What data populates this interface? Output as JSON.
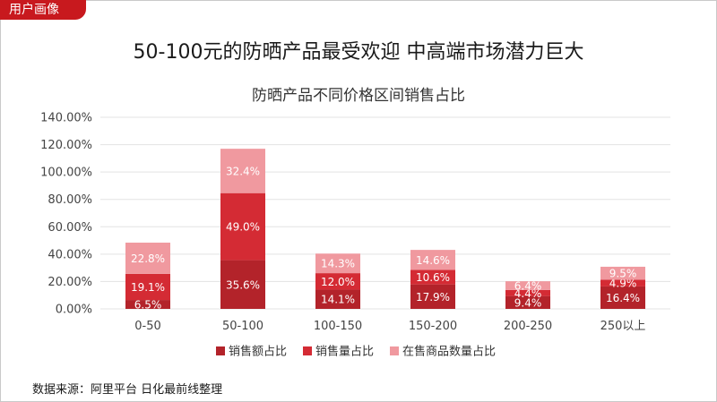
{
  "tag": "用户画像",
  "headline": "50-100元的防晒产品最受欢迎 中高端市场潜力巨大",
  "source": "数据来源：阿里平台 日化最前线整理",
  "colors": {
    "accent": "#c8191e",
    "grid": "#e3e3e3"
  },
  "chart_data": {
    "type": "bar",
    "stacked": true,
    "title": "防晒产品不同价格区间销售占比",
    "xlabel": "",
    "ylabel": "",
    "ylim": [
      0,
      140
    ],
    "yticks": [
      "0.00%",
      "20.00%",
      "40.00%",
      "60.00%",
      "80.00%",
      "100.00%",
      "120.00%",
      "140.00%"
    ],
    "grid": true,
    "legend_position": "bottom",
    "categories": [
      "0-50",
      "50-100",
      "100-150",
      "150-200",
      "200-250",
      "250以上"
    ],
    "series": [
      {
        "name": "销售额占比",
        "color": "#b3232a",
        "values": [
          6.5,
          35.6,
          14.1,
          17.9,
          9.4,
          16.4
        ],
        "labels": [
          "6.5%",
          "35.6%",
          "14.1%",
          "17.9%",
          "9.4%",
          "16.4%"
        ]
      },
      {
        "name": "销售量占比",
        "color": "#d42b34",
        "values": [
          19.1,
          49.0,
          12.0,
          10.6,
          4.4,
          4.9
        ],
        "labels": [
          "19.1%",
          "49.0%",
          "12.0%",
          "10.6%",
          "4.4%",
          "4.9%"
        ]
      },
      {
        "name": "在售商品数量占比",
        "color": "#f0999f",
        "values": [
          22.8,
          32.4,
          14.3,
          14.6,
          6.4,
          9.5
        ],
        "labels": [
          "22.8%",
          "32.4%",
          "14.3%",
          "14.6%",
          "6.4%",
          "9.5%"
        ]
      }
    ]
  }
}
